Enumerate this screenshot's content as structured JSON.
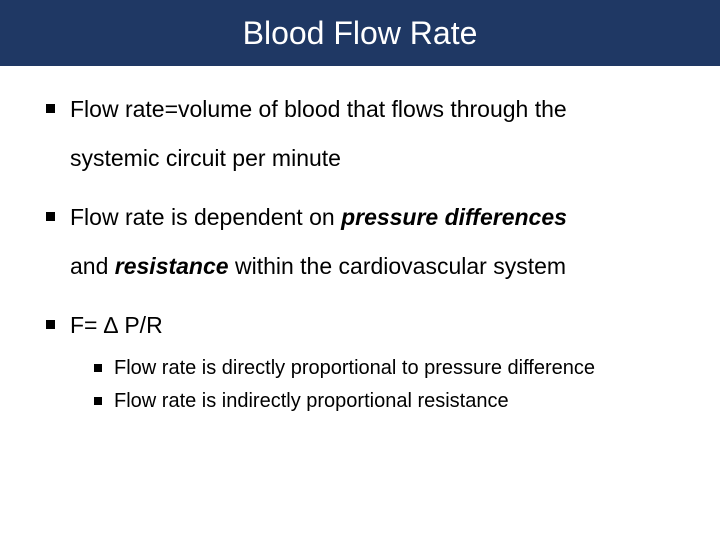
{
  "slide": {
    "title": "Blood Flow Rate",
    "title_bar_color": "#1f3864",
    "title_text_color": "#ffffff",
    "title_fontsize": 32,
    "background_color": "#ffffff",
    "body_fontsize": 23,
    "sub_fontsize": 20,
    "bullet_color": "#000000",
    "bullets": [
      {
        "line1": "Flow rate=volume of blood that flows through the",
        "line2": "systemic circuit per minute"
      },
      {
        "prefix": "Flow rate is dependent on ",
        "bold1": "pressure differences",
        "mid_line2_prefix": "and ",
        "bold2": "resistance",
        "suffix": " within the cardiovascular system"
      },
      {
        "text": "F= ∆ P/R",
        "sub": [
          "Flow rate is directly proportional to pressure difference",
          "Flow rate is indirectly proportional resistance"
        ]
      }
    ]
  }
}
